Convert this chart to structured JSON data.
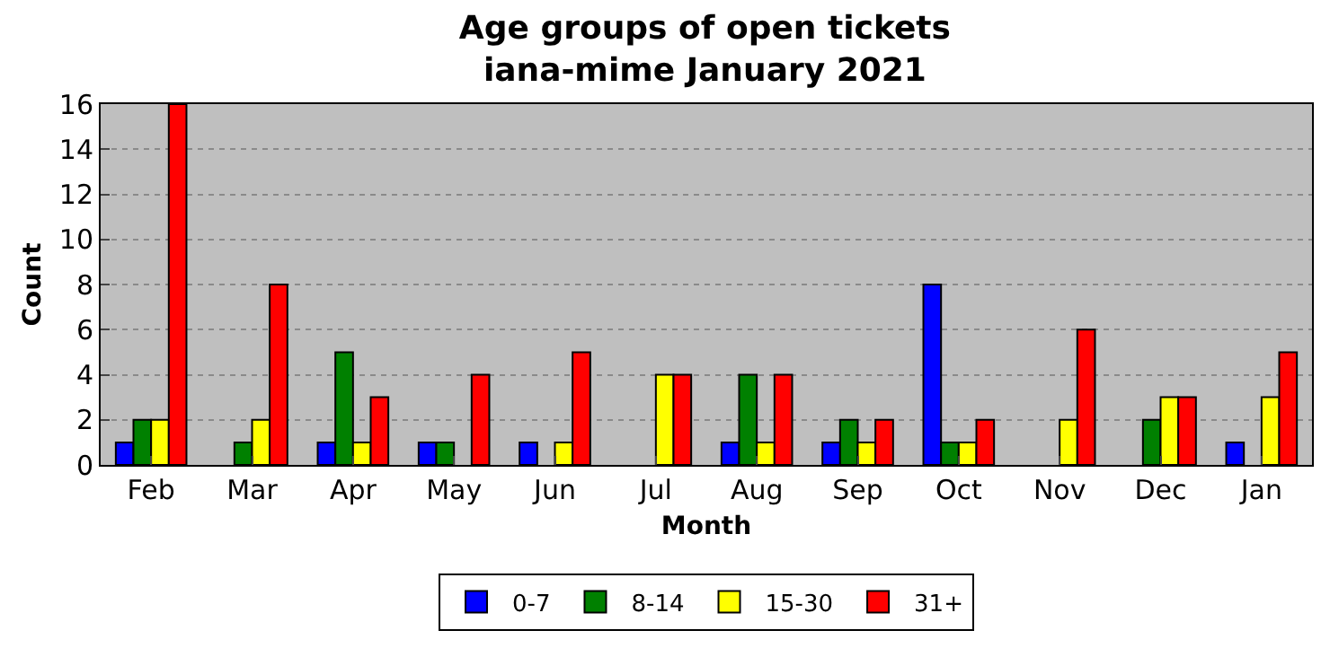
{
  "chart_data": {
    "type": "bar",
    "title": "Age groups of open tickets\niana-mime January 2021",
    "xlabel": "Month",
    "ylabel": "Count",
    "categories": [
      "Feb",
      "Mar",
      "Apr",
      "May",
      "Jun",
      "Jul",
      "Aug",
      "Sep",
      "Oct",
      "Nov",
      "Dec",
      "Jan"
    ],
    "series": [
      {
        "name": "0-7",
        "color": "#0000ff",
        "values": [
          1,
          0,
          1,
          1,
          1,
          0,
          1,
          1,
          8,
          0,
          0,
          1
        ]
      },
      {
        "name": "8-14",
        "color": "#008000",
        "values": [
          2,
          1,
          5,
          1,
          0,
          0,
          4,
          2,
          1,
          0,
          2,
          0
        ]
      },
      {
        "name": "15-30",
        "color": "#ffff00",
        "values": [
          2,
          2,
          1,
          0,
          1,
          4,
          1,
          1,
          1,
          2,
          3,
          3
        ]
      },
      {
        "name": "31+",
        "color": "#ff0000",
        "values": [
          16,
          8,
          3,
          4,
          5,
          4,
          4,
          2,
          2,
          6,
          3,
          5
        ]
      }
    ],
    "ylim": [
      0,
      16
    ],
    "yticks": [
      0,
      2,
      4,
      6,
      8,
      10,
      12,
      14,
      16
    ],
    "grid": "y",
    "legend": "bottom"
  }
}
